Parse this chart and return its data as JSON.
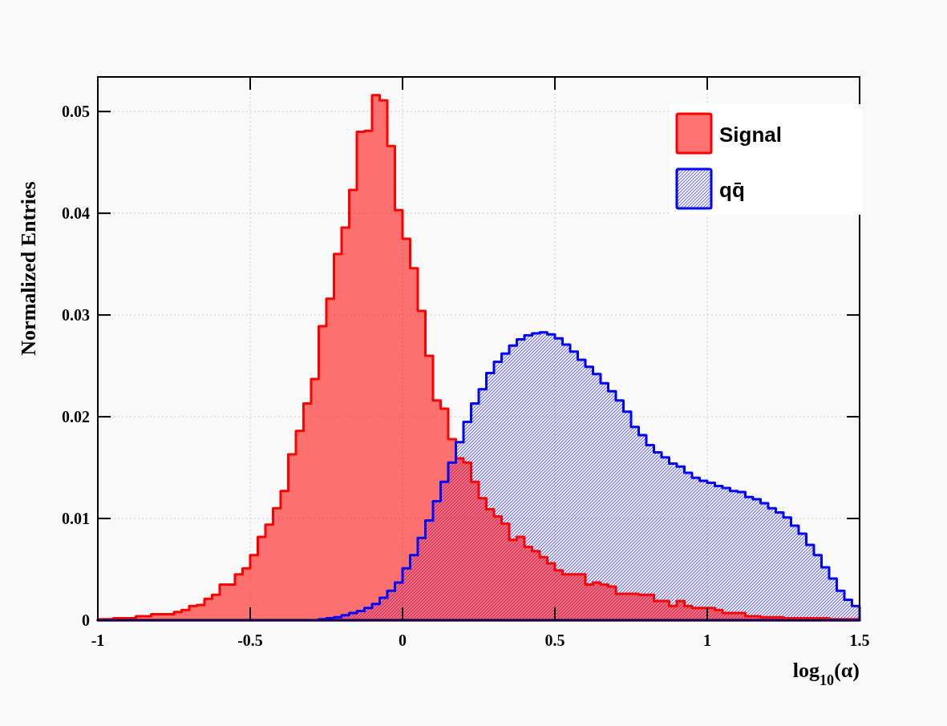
{
  "chart_data": {
    "type": "histogram",
    "xlabel": "log$_{10}$(α)",
    "ylabel": "Normalized Entries",
    "bins": [
      -1,
      -0.975,
      -0.95,
      -0.925,
      -0.9,
      -0.875,
      -0.85,
      -0.825,
      -0.8,
      -0.775,
      -0.75,
      -0.725,
      -0.7,
      -0.675,
      -0.65,
      -0.625,
      -0.6,
      -0.575,
      -0.55,
      -0.525,
      -0.5,
      -0.475,
      -0.45,
      -0.425,
      -0.4,
      -0.375,
      -0.35,
      -0.325,
      -0.3,
      -0.275,
      -0.25,
      -0.225,
      -0.2,
      -0.175,
      -0.15,
      -0.125,
      -0.1,
      -0.075,
      -0.05,
      -0.025,
      0,
      0.025,
      0.05,
      0.075,
      0.1,
      0.125,
      0.15,
      0.175,
      0.2,
      0.225,
      0.25,
      0.275,
      0.3,
      0.325,
      0.35,
      0.375,
      0.4,
      0.425,
      0.45,
      0.475,
      0.5,
      0.525,
      0.55,
      0.575,
      0.6,
      0.625,
      0.65,
      0.675,
      0.7,
      0.725,
      0.75,
      0.775,
      0.8,
      0.825,
      0.85,
      0.875,
      0.9,
      0.925,
      0.95,
      0.975,
      1,
      1.025,
      1.05,
      1.075,
      1.1,
      1.125,
      1.15,
      1.175,
      1.2,
      1.225,
      1.25,
      1.275,
      1.3,
      1.325,
      1.35,
      1.375,
      1.4,
      1.425,
      1.45,
      1.475,
      1.5
    ],
    "series": [
      {
        "name": "Signal",
        "color": "#ff0000",
        "values": [
          0.0001,
          0.0001,
          0.0002,
          0.0002,
          0.0002,
          0.0004,
          0.0004,
          0.0006,
          0.0006,
          0.0006,
          0.0008,
          0.001,
          0.0014,
          0.0015,
          0.0021,
          0.0025,
          0.0035,
          0.0035,
          0.0045,
          0.0051,
          0.0064,
          0.0082,
          0.0094,
          0.011,
          0.0127,
          0.0163,
          0.0186,
          0.0213,
          0.0237,
          0.0289,
          0.0316,
          0.036,
          0.0386,
          0.0423,
          0.048,
          0.0481,
          0.0516,
          0.0511,
          0.0466,
          0.0403,
          0.0375,
          0.0346,
          0.0304,
          0.026,
          0.0216,
          0.0208,
          0.0178,
          0.0159,
          0.0155,
          0.0136,
          0.012,
          0.0109,
          0.0102,
          0.0095,
          0.0079,
          0.0082,
          0.0072,
          0.0068,
          0.0062,
          0.0056,
          0.0049,
          0.0045,
          0.0045,
          0.0045,
          0.0035,
          0.0037,
          0.0035,
          0.0033,
          0.0026,
          0.0026,
          0.0026,
          0.0025,
          0.0025,
          0.0019,
          0.0019,
          0.0014,
          0.0019,
          0.0014,
          0.0012,
          0.0012,
          0.0012,
          0.001,
          0.0007,
          0.0007,
          0.0007,
          0.0004,
          0.0004,
          0.0003,
          0.0003,
          0.0003,
          0.0002,
          0.0002,
          0.0002,
          0.0002,
          0.0002,
          0.0002,
          0.0001,
          0.0001,
          0.0001,
          0.0001
        ]
      },
      {
        "name": "qq̄",
        "color": "#0000ff",
        "values": [
          0,
          0,
          0,
          0,
          0,
          0,
          0,
          0,
          0,
          0,
          0,
          0,
          0,
          0,
          0,
          0,
          0,
          0,
          0,
          0,
          0,
          0,
          0,
          0,
          0,
          0,
          0,
          0,
          0,
          0.0001,
          0.0002,
          0.0003,
          0.0005,
          0.0007,
          0.0009,
          0.0012,
          0.0016,
          0.0022,
          0.0029,
          0.0037,
          0.0051,
          0.0064,
          0.0081,
          0.0098,
          0.0117,
          0.0136,
          0.0155,
          0.0175,
          0.0195,
          0.0213,
          0.0227,
          0.0243,
          0.0254,
          0.0262,
          0.027,
          0.0276,
          0.028,
          0.0282,
          0.0283,
          0.0281,
          0.0277,
          0.0271,
          0.0264,
          0.0256,
          0.0249,
          0.0242,
          0.0233,
          0.0225,
          0.0216,
          0.0205,
          0.019,
          0.0182,
          0.0172,
          0.0165,
          0.016,
          0.0154,
          0.0151,
          0.0145,
          0.014,
          0.0137,
          0.0135,
          0.0132,
          0.013,
          0.0127,
          0.0126,
          0.0121,
          0.0119,
          0.0115,
          0.011,
          0.0106,
          0.0101,
          0.0093,
          0.0085,
          0.0074,
          0.0064,
          0.0052,
          0.0041,
          0.0029,
          0.002,
          0.0014
        ]
      }
    ],
    "xlim": [
      -1,
      1.5
    ],
    "xticks": [
      -1,
      -0.5,
      0,
      0.5,
      1,
      1.5
    ],
    "ylim": [
      0,
      0.0534
    ],
    "yticks": [
      0,
      0.01,
      0.02,
      0.03,
      0.04,
      0.05
    ],
    "grid": true,
    "legend": "top right"
  }
}
